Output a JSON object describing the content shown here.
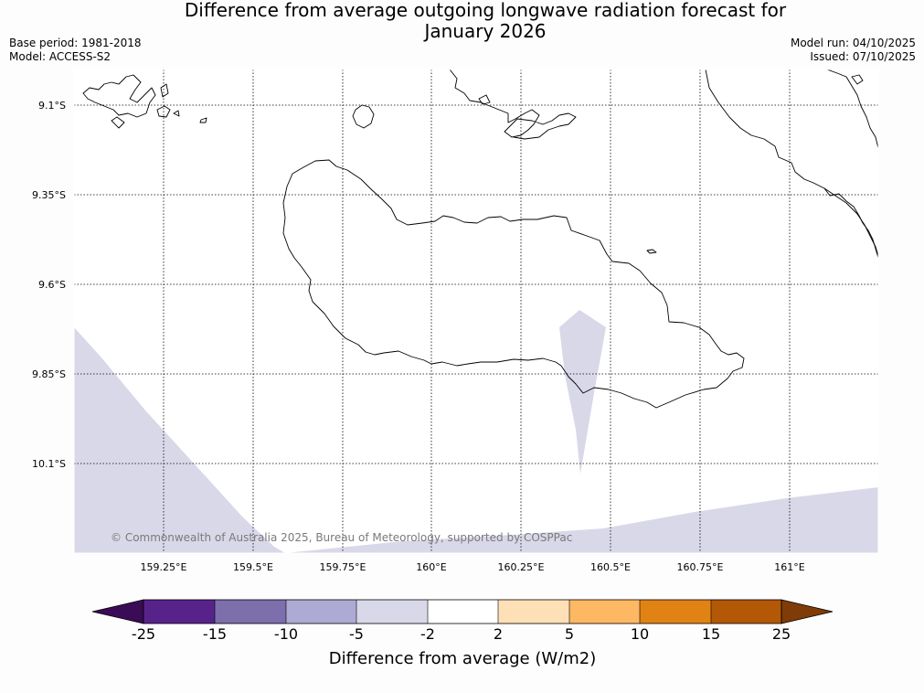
{
  "title_line1": "Difference from average outgoing longwave radiation forecast for",
  "title_line2": "January 2026",
  "info_left": {
    "base_period": "Base period: 1981-2018",
    "model": "Model: ACCESS-S2"
  },
  "info_right": {
    "model_run": "Model run: 04/10/2025",
    "issued": "Issued: 07/10/2025"
  },
  "map": {
    "lat_labels": [
      "9.1°S",
      "9.35°S",
      "9.6°S",
      "9.85°S",
      "10.1°S"
    ],
    "lon_labels": [
      "159.25°E",
      "159.5°E",
      "159.75°E",
      "160°E",
      "160.25°E",
      "160.5°E",
      "160.75°E",
      "161°E"
    ],
    "anomaly_fill_color": "#d8d8e9",
    "copyright": "© Commonwealth of Australia 2025, Bureau of Meteorology, supported by COSPPac"
  },
  "colorbar": {
    "title": "Difference from average (W/m2)",
    "bins": [
      {
        "color": "#3a0b56"
      },
      {
        "color": "#57238a"
      },
      {
        "color": "#7d6fac"
      },
      {
        "color": "#adabd3"
      },
      {
        "color": "#d8d8e9"
      },
      {
        "color": "#ffffff"
      },
      {
        "color": "#fee0b6"
      },
      {
        "color": "#fdb863"
      },
      {
        "color": "#e08214"
      },
      {
        "color": "#b35806"
      },
      {
        "color": "#7f3b08"
      }
    ],
    "tick_labels": [
      "-25",
      "-15",
      "-10",
      "-5",
      "-2",
      "2",
      "5",
      "10",
      "15",
      "25"
    ]
  }
}
